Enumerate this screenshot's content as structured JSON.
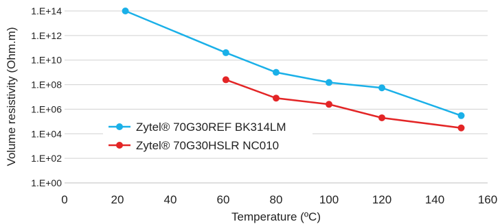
{
  "chart_data": {
    "type": "line",
    "title": "",
    "xlabel": "Temperature (ºC)",
    "ylabel": "Volume resistivity (Ohm.m)",
    "xlim": [
      0,
      160
    ],
    "x_ticks": [
      0,
      20,
      40,
      60,
      80,
      100,
      120,
      140,
      160
    ],
    "ylim": [
      1,
      100000000000000.0
    ],
    "y_scale": "log",
    "y_ticks": [
      {
        "value": 1,
        "label": "1.E+00"
      },
      {
        "value": 100,
        "label": "1.E+02"
      },
      {
        "value": 10000,
        "label": "1.E+04"
      },
      {
        "value": 1000000,
        "label": "1.E+06"
      },
      {
        "value": 100000000,
        "label": "1.E+08"
      },
      {
        "value": 10000000000,
        "label": "1.E+10"
      },
      {
        "value": 1000000000000,
        "label": "1.E+12"
      },
      {
        "value": 100000000000000,
        "label": "1.E+14"
      }
    ],
    "grid": "horizontal",
    "legend_position": "left-bottom",
    "series": [
      {
        "name": "Zytel® 70G30REF BK314LM",
        "color": "#1ab0e8",
        "points": [
          {
            "x": 23,
            "y": 100000000000000
          },
          {
            "x": 61,
            "y": 40000000000
          },
          {
            "x": 80,
            "y": 1000000000
          },
          {
            "x": 100,
            "y": 150000000
          },
          {
            "x": 120,
            "y": 55000000
          },
          {
            "x": 150,
            "y": 300000
          }
        ]
      },
      {
        "name": "Zytel® 70G30HSLR NC010",
        "color": "#e32526",
        "points": [
          {
            "x": 61,
            "y": 250000000
          },
          {
            "x": 80,
            "y": 8000000
          },
          {
            "x": 100,
            "y": 2500000
          },
          {
            "x": 120,
            "y": 200000
          },
          {
            "x": 150,
            "y": 30000
          }
        ]
      }
    ]
  }
}
